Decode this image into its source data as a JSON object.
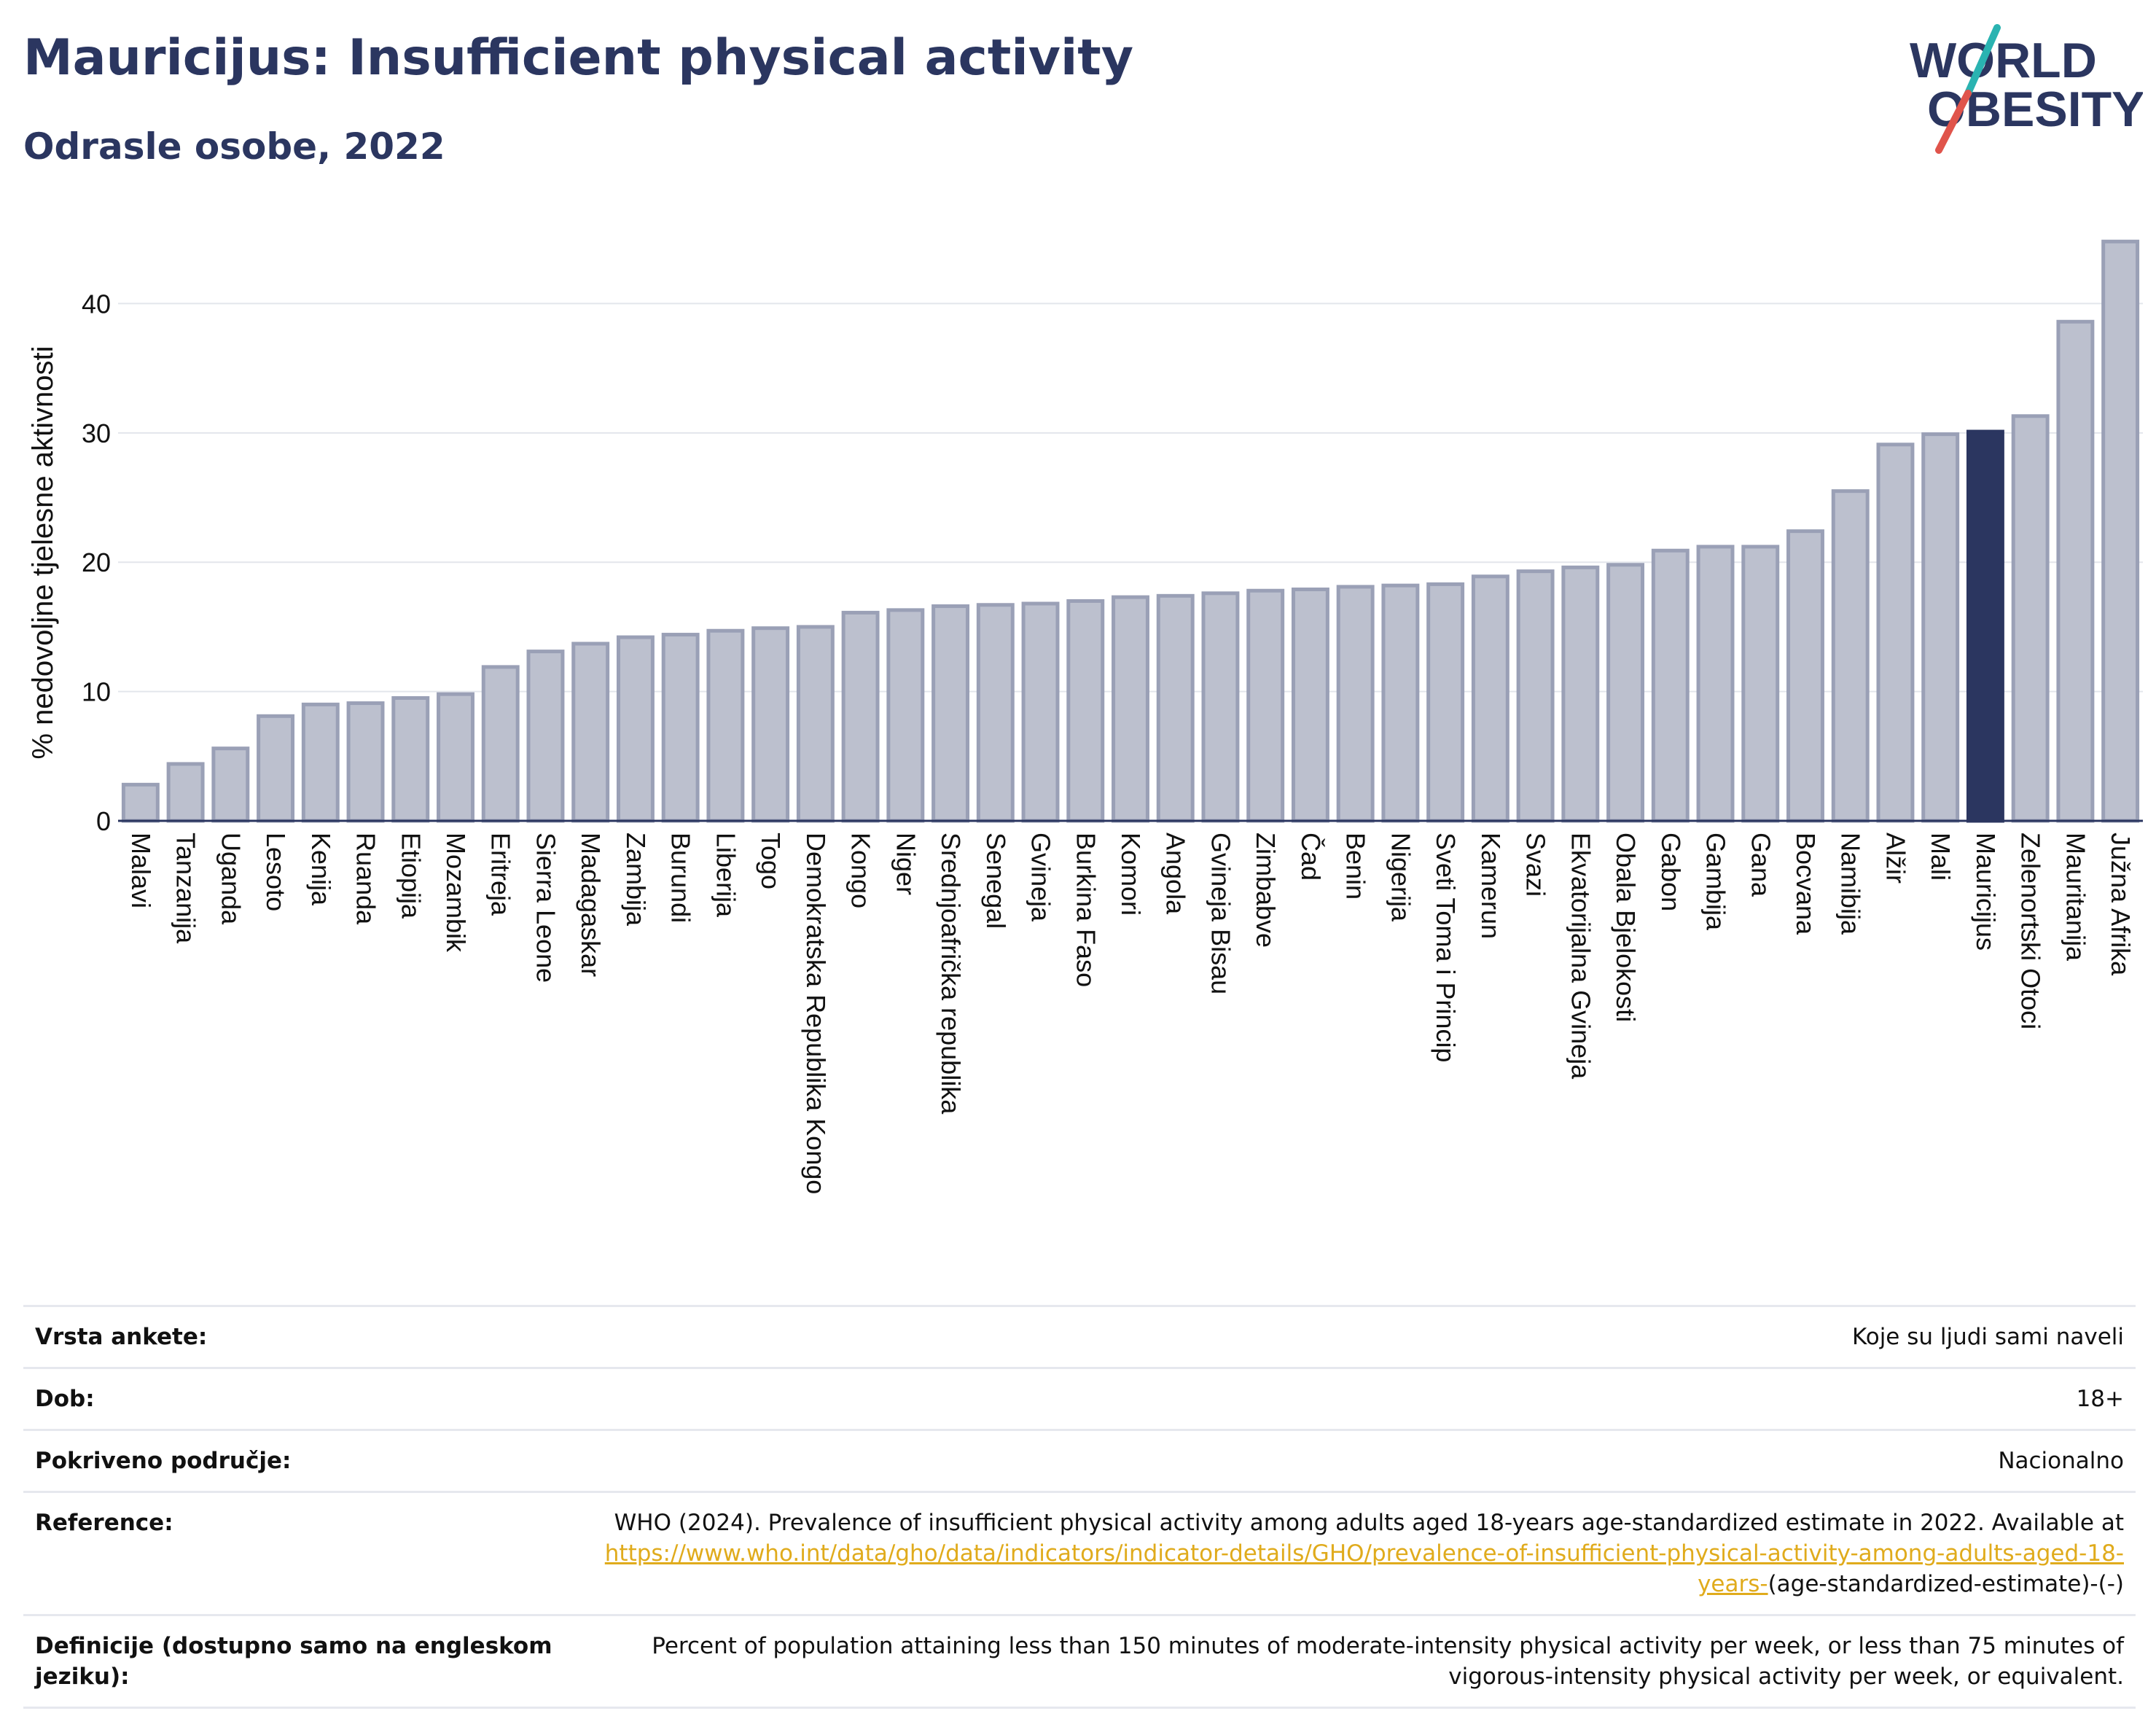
{
  "header": {
    "title": "Mauricijus: Insufficient physical activity",
    "subtitle": "Odrasle osobe, 2022"
  },
  "logo": {
    "line1": "WORLD",
    "line2": "OBESITY",
    "colors": {
      "text": "#2b3660",
      "slash_teal": "#2ab3b1",
      "slash_red": "#e0544b"
    }
  },
  "chart_data": {
    "type": "bar",
    "ylabel": "% nedovoljne tjelesne aktivnosti",
    "ylim": [
      0,
      46
    ],
    "yticks": [
      0,
      10,
      20,
      30,
      40
    ],
    "grid": true,
    "highlight": "Mauricijus",
    "colors": {
      "bar": "#bcc0ce",
      "bar_stroke": "#9aa0b6",
      "highlight": "#2b3660",
      "axis": "#2b3660",
      "grid": "#e3e6ec"
    },
    "categories": [
      "Malavi",
      "Tanzanija",
      "Uganda",
      "Lesoto",
      "Kenija",
      "Ruanda",
      "Etiopija",
      "Mozambik",
      "Eritreja",
      "Sierra Leone",
      "Madagaskar",
      "Zambija",
      "Burundi",
      "Liberija",
      "Togo",
      "Demokratska Republika Kongo",
      "Kongo",
      "Niger",
      "Srednjoafrička republika",
      "Senegal",
      "Gvineja",
      "Burkina Faso",
      "Komori",
      "Angola",
      "Gvineja Bisau",
      "Zimbabve",
      "Čad",
      "Benin",
      "Nigerija",
      "Sveti Toma i Princip",
      "Kamerun",
      "Svazi",
      "Ekvatorijalna Gvineja",
      "Obala Bjelokosti",
      "Gabon",
      "Gambija",
      "Gana",
      "Bocvana",
      "Namibija",
      "Alžir",
      "Mali",
      "Mauricijus",
      "Zelenortski Otoci",
      "Mauritanija",
      "Južna Afrika"
    ],
    "values": [
      2.8,
      4.4,
      5.6,
      8.1,
      9.0,
      9.1,
      9.5,
      9.8,
      11.9,
      13.1,
      13.7,
      14.2,
      14.4,
      14.7,
      14.9,
      15.0,
      16.1,
      16.3,
      16.6,
      16.7,
      16.8,
      17.0,
      17.3,
      17.4,
      17.6,
      17.8,
      17.9,
      18.1,
      18.2,
      18.3,
      18.9,
      19.3,
      19.6,
      19.8,
      20.9,
      21.2,
      21.2,
      22.4,
      25.5,
      29.1,
      29.9,
      30.1,
      31.3,
      38.6,
      44.8
    ]
  },
  "info": {
    "rows": [
      {
        "label": "Vrsta ankete:",
        "value": "Koje su ljudi sami naveli"
      },
      {
        "label": "Dob:",
        "value": "18+"
      },
      {
        "label": "Pokriveno područje:",
        "value": "Nacionalno"
      }
    ],
    "reference": {
      "label": "Reference:",
      "text": "WHO (2024). Prevalence of insufficient physical activity among adults aged 18-years age-standardized estimate in 2022. Available at",
      "link": "https://www.who.int/data/gho/data/indicators/indicator-details/GHO/prevalence-of-insufficient-physical-activity-among-adults-aged-18-years-",
      "suffix": "(age-standardized-estimate)-(-)"
    },
    "definition": {
      "label": "Definicije (dostupno samo na engleskom jeziku):",
      "value": "Percent of population attaining less than 150 minutes of moderate-intensity physical activity per week, or less than 75 minutes of vigorous-intensity physical activity per week, or equivalent."
    }
  }
}
